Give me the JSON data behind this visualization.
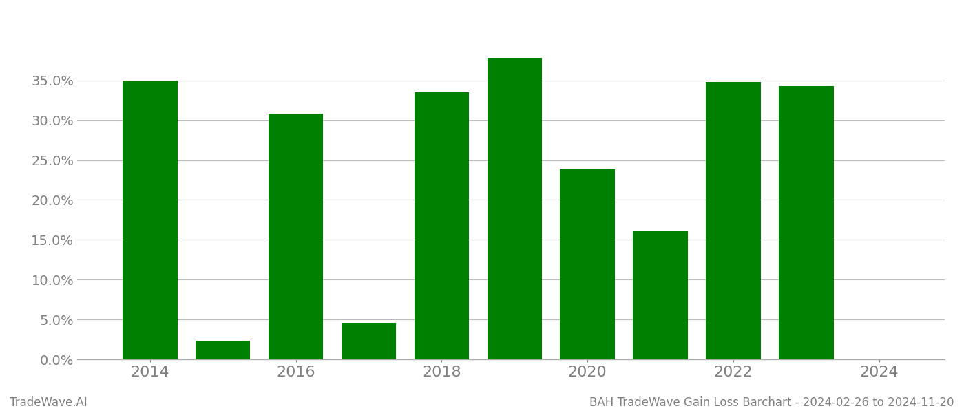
{
  "years": [
    2014,
    2015,
    2016,
    2017,
    2018,
    2019,
    2020,
    2021,
    2022,
    2023
  ],
  "values": [
    0.35,
    0.023,
    0.308,
    0.046,
    0.335,
    0.378,
    0.238,
    0.161,
    0.348,
    0.343
  ],
  "bar_color": "#008000",
  "background_color": "#ffffff",
  "grid_color": "#bbbbbb",
  "ylabel_color": "#808080",
  "xlabel_color": "#808080",
  "ylim": [
    0,
    0.425
  ],
  "yticks": [
    0.0,
    0.05,
    0.1,
    0.15,
    0.2,
    0.25,
    0.3,
    0.35
  ],
  "xticks": [
    2014,
    2016,
    2018,
    2020,
    2022,
    2024
  ],
  "xlim": [
    2013.0,
    2024.9
  ],
  "bottom_left_text": "TradeWave.AI",
  "bottom_right_text": "BAH TradeWave Gain Loss Barchart - 2024-02-26 to 2024-11-20",
  "bottom_text_color": "#808080",
  "bar_width": 0.75,
  "font_family": "DejaVu Sans"
}
